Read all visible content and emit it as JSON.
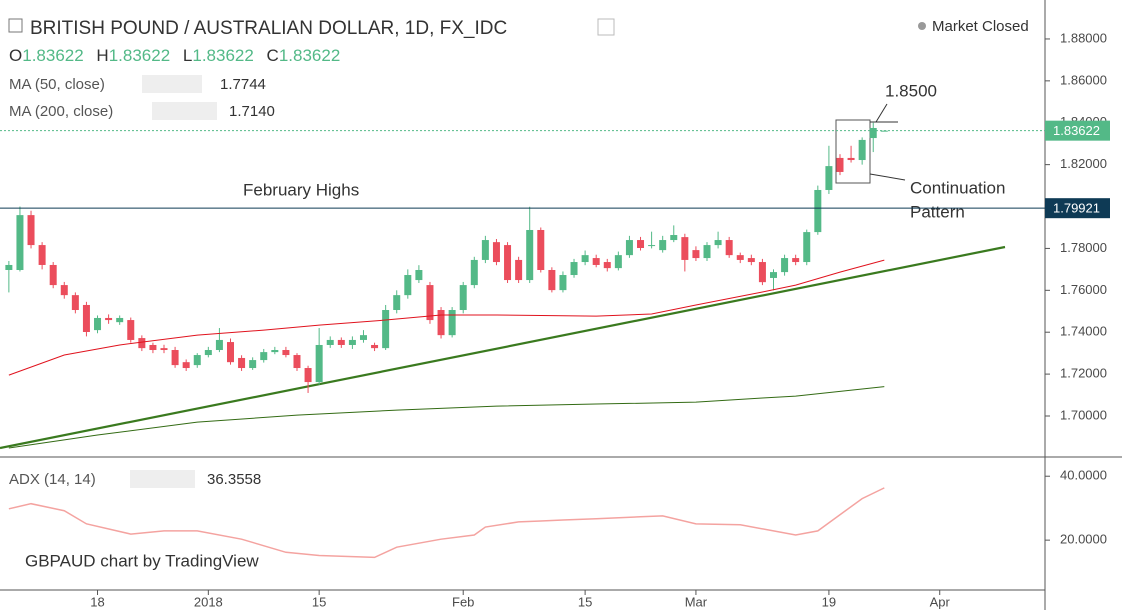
{
  "header": {
    "title": "BRITISH POUND / AUSTRALIAN DOLLAR, 1D, FX_IDC",
    "status": "Market Closed",
    "ohlc": [
      {
        "key": "O",
        "value": 1.83622
      },
      {
        "key": "H",
        "value": 1.83622
      },
      {
        "key": "L",
        "value": 1.83622
      },
      {
        "key": "C",
        "value": 1.83622
      }
    ],
    "watermark": "GBPAUD chart by TradingView"
  },
  "annotations": {
    "highs": "February Highs",
    "target": "1.8500",
    "pattern": [
      "Continuation",
      "Pattern"
    ]
  },
  "chart_data": [
    {
      "type": "candlestick",
      "up_color": "#53b987",
      "down_color": "#eb4d5c",
      "xlim": [
        -0.8,
        93.5
      ],
      "ylim": [
        1.6809,
        1.8986
      ],
      "xticks": [
        {
          "value": 8,
          "label": "18"
        },
        {
          "value": 18,
          "label": "2018"
        },
        {
          "value": 28,
          "label": "15"
        },
        {
          "value": 41,
          "label": "Feb"
        },
        {
          "value": 52,
          "label": "15"
        },
        {
          "value": 62,
          "label": "Mar"
        },
        {
          "value": 74,
          "label": "19"
        },
        {
          "value": 84,
          "label": "Apr"
        }
      ],
      "yticks": [
        {
          "value": 1.7,
          "label": "1.70000"
        },
        {
          "value": 1.72,
          "label": "1.72000"
        },
        {
          "value": 1.74,
          "label": "1.74000"
        },
        {
          "value": 1.76,
          "label": "1.76000"
        },
        {
          "value": 1.78,
          "label": "1.78000"
        },
        {
          "value": 1.8,
          "label": "1.80000"
        },
        {
          "value": 1.82,
          "label": "1.82000"
        },
        {
          "value": 1.84,
          "label": "1.84000"
        },
        {
          "value": 1.86,
          "label": "1.86000"
        },
        {
          "value": 1.88,
          "label": "1.88000"
        }
      ],
      "grid": false,
      "open": [
        1.7697,
        1.7697,
        1.7959,
        1.7816,
        1.7721,
        1.7625,
        1.7577,
        1.753,
        1.741,
        1.7468,
        1.7448,
        1.7458,
        1.7372,
        1.7339,
        1.7324,
        1.7315,
        1.7257,
        1.7243,
        1.7291,
        1.7315,
        1.7353,
        1.7277,
        1.7229,
        1.7267,
        1.7305,
        1.7315,
        1.7291,
        1.7229,
        1.7162,
        1.7339,
        1.7363,
        1.7339,
        1.7363,
        1.7339,
        1.7324,
        1.7506,
        1.7577,
        1.7649,
        1.7625,
        1.7506,
        1.7386,
        1.7506,
        1.7625,
        1.7745,
        1.783,
        1.7816,
        1.7745,
        1.7649,
        1.7888,
        1.7697,
        1.7601,
        1.7673,
        1.7735,
        1.7754,
        1.7735,
        1.7706,
        1.7768,
        1.784,
        1.7816,
        1.7792,
        1.784,
        1.7854,
        1.7792,
        1.7754,
        1.7816,
        1.784,
        1.7768,
        1.7754,
        1.7735,
        1.7659,
        1.7687,
        1.7754,
        1.7735,
        1.7878,
        1.8079,
        1.8232,
        1.8232,
        1.8222,
        1.8327,
        1.83622
      ],
      "high": [
        1.774,
        1.8,
        1.798,
        1.783,
        1.7735,
        1.764,
        1.759,
        1.7545,
        1.748,
        1.7485,
        1.748,
        1.747,
        1.7385,
        1.735,
        1.734,
        1.733,
        1.727,
        1.73,
        1.733,
        1.742,
        1.737,
        1.729,
        1.728,
        1.732,
        1.733,
        1.733,
        1.73,
        1.724,
        1.742,
        1.738,
        1.7375,
        1.738,
        1.741,
        1.735,
        1.753,
        1.76,
        1.77,
        1.772,
        1.764,
        1.752,
        1.752,
        1.764,
        1.776,
        1.786,
        1.7845,
        1.783,
        1.776,
        1.7999,
        1.79,
        1.771,
        1.769,
        1.775,
        1.779,
        1.777,
        1.775,
        1.7785,
        1.786,
        1.7855,
        1.788,
        1.786,
        1.791,
        1.787,
        1.781,
        1.783,
        1.788,
        1.7855,
        1.778,
        1.777,
        1.775,
        1.77,
        1.777,
        1.777,
        1.789,
        1.81,
        1.829,
        1.825,
        1.829,
        1.833,
        1.84,
        1.83622
      ],
      "low": [
        1.759,
        1.769,
        1.78,
        1.77,
        1.761,
        1.756,
        1.749,
        1.738,
        1.7395,
        1.744,
        1.7435,
        1.735,
        1.731,
        1.73,
        1.73,
        1.723,
        1.7215,
        1.723,
        1.728,
        1.7305,
        1.7245,
        1.7215,
        1.722,
        1.7255,
        1.7295,
        1.728,
        1.7215,
        1.711,
        1.715,
        1.7325,
        1.7325,
        1.732,
        1.735,
        1.731,
        1.7315,
        1.749,
        1.756,
        1.7635,
        1.744,
        1.737,
        1.7375,
        1.749,
        1.761,
        1.773,
        1.772,
        1.7635,
        1.7635,
        1.7635,
        1.7685,
        1.759,
        1.759,
        1.766,
        1.772,
        1.771,
        1.769,
        1.7695,
        1.7755,
        1.779,
        1.78,
        1.778,
        1.783,
        1.769,
        1.774,
        1.774,
        1.78,
        1.7755,
        1.773,
        1.772,
        1.7625,
        1.76,
        1.767,
        1.772,
        1.772,
        1.7865,
        1.806,
        1.815,
        1.821,
        1.82,
        1.826,
        1.83622
      ],
      "close": [
        1.7721,
        1.7959,
        1.7816,
        1.7721,
        1.7625,
        1.7577,
        1.7506,
        1.7401,
        1.7468,
        1.7458,
        1.7468,
        1.7363,
        1.7324,
        1.7315,
        1.7315,
        1.7243,
        1.7229,
        1.7291,
        1.7315,
        1.7363,
        1.7257,
        1.7229,
        1.7267,
        1.7305,
        1.7315,
        1.7291,
        1.7229,
        1.7162,
        1.7339,
        1.7363,
        1.7339,
        1.7363,
        1.7386,
        1.7324,
        1.7506,
        1.7577,
        1.7673,
        1.7697,
        1.7458,
        1.7386,
        1.7506,
        1.7625,
        1.7745,
        1.784,
        1.7735,
        1.7649,
        1.7649,
        1.7888,
        1.7697,
        1.7601,
        1.7673,
        1.7735,
        1.7768,
        1.7721,
        1.7706,
        1.7768,
        1.784,
        1.7802,
        1.7816,
        1.784,
        1.7864,
        1.7745,
        1.7754,
        1.7816,
        1.784,
        1.7768,
        1.7745,
        1.7735,
        1.7639,
        1.7687,
        1.7754,
        1.7735,
        1.7878,
        1.8079,
        1.8193,
        1.8165,
        1.8222,
        1.8318,
        1.8375,
        1.83622
      ],
      "series": [
        {
          "name": "MA (50, close)",
          "color": "#e0121d",
          "x": [
            0,
            5,
            10,
            17,
            23,
            28,
            34,
            39,
            44,
            53,
            58,
            62,
            68,
            71,
            75,
            79
          ],
          "values": [
            1.7195,
            1.7291,
            1.7339,
            1.7386,
            1.741,
            1.7434,
            1.7458,
            1.7482,
            1.7482,
            1.7477,
            1.7487,
            1.753,
            1.7592,
            1.7625,
            1.7687,
            1.7744
          ]
        },
        {
          "name": "MA (200, close)",
          "color": "#336b14",
          "x": [
            0,
            8,
            17,
            26,
            35,
            44,
            53,
            62,
            68,
            71,
            79
          ],
          "values": [
            1.6847,
            1.6909,
            1.6971,
            1.7004,
            1.7028,
            1.7047,
            1.7057,
            1.7066,
            1.7086,
            1.7095,
            1.714
          ],
          "legend_value_label": "1.7140"
        }
      ],
      "hlines": [
        {
          "value": 1.79921,
          "color": "#0e3a55",
          "dash": false
        },
        {
          "value": 1.83622,
          "color": "#53b987",
          "dash": true
        }
      ]
    },
    {
      "type": "line",
      "ylim": [
        4.4,
        45.7
      ],
      "yticks": [
        {
          "value": 40,
          "label": "40.0000"
        },
        {
          "value": 20,
          "label": "20.0000"
        }
      ],
      "series": [
        {
          "name": "ADX (14, 14)",
          "color": "#f4a3a0",
          "x": [
            0,
            2,
            5,
            7,
            11,
            14,
            17,
            21,
            25,
            28,
            33,
            35,
            39,
            42,
            43,
            46,
            48,
            50,
            53,
            57,
            59,
            62,
            66,
            69,
            71,
            73,
            77,
            79
          ],
          "values": [
            29.8,
            31.4,
            29.2,
            25.1,
            21.9,
            22.9,
            22.9,
            20.3,
            16.2,
            15.2,
            14.6,
            17.8,
            20.3,
            21.6,
            24.1,
            25.7,
            26.0,
            26.3,
            26.7,
            27.3,
            27.6,
            25.1,
            24.8,
            22.9,
            21.6,
            22.9,
            33.0,
            36.3558
          ]
        }
      ]
    }
  ]
}
